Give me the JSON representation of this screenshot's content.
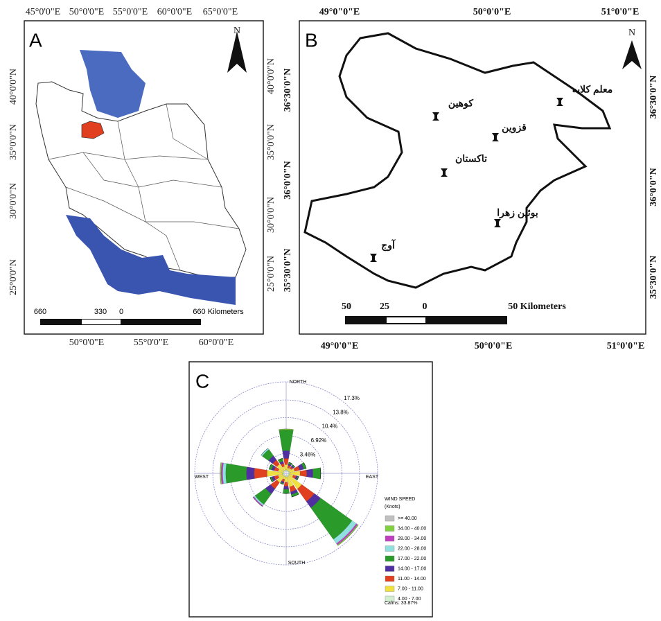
{
  "panel_a": {
    "label": "A",
    "north": "N",
    "top_lon": [
      "45°0'0\"E",
      "50°0'0\"E",
      "55°0'0\"E",
      "60°0'0\"E",
      "65°0'0\"E"
    ],
    "bottom_lon": [
      "50°0'0\"E",
      "55°0'0\"E",
      "60°0'0\"E"
    ],
    "left_lat": [
      "40°0'0\"N",
      "35°0'0\"N",
      "30°0'0\"N",
      "25°0'0\"N"
    ],
    "right_lat": [
      "40°0'0\"N",
      "35°0'0\"N",
      "30°0'0\"N",
      "25°0'0\"N"
    ],
    "scale": [
      "660",
      "330",
      "0",
      "660 Kilometers"
    ]
  },
  "panel_b": {
    "label": "B",
    "north": "N",
    "top_lon": [
      "49°0\"0\"E",
      "50°0'0\"E",
      "51°0'0\"E"
    ],
    "bottom_lon": [
      "49°0'0\"E",
      "50°0'0\"E",
      "51°0'0\"E"
    ],
    "left_lat": [
      "36°30'0\"N",
      "36°0'0\"N",
      "35°30'0\"N"
    ],
    "right_lat": [
      "36°30'0\"N",
      "36°0'0\"N",
      "35°30'0\"N"
    ],
    "cities": [
      "معلم کلایه",
      "کوهین",
      "قزوین",
      "تاکستان",
      "بوئین زهرا",
      "آوج"
    ],
    "scale": [
      "50",
      "25",
      "0",
      "50 Kilometers"
    ]
  },
  "chart_data": {
    "type": "windrose",
    "panel_label": "C",
    "compass": [
      "NORTH",
      "EAST",
      "SOUTH",
      "WEST"
    ],
    "categories": [
      null,
      null,
      null,
      null,
      null,
      null,
      null,
      null,
      null,
      null,
      null,
      null,
      null,
      null,
      null,
      null
    ],
    "rlim": [
      0,
      17.3
    ],
    "rticks": [
      {
        "value": 3.46,
        "label": "3.46%"
      },
      {
        "value": 6.92,
        "label": "6.92%"
      },
      {
        "value": 10.4,
        "label": "10.4%"
      },
      {
        "value": 13.8,
        "label": "13.8%"
      },
      {
        "value": 17.3,
        "label": "17.3%"
      }
    ],
    "legend_title": [
      "WIND SPEED",
      "(Knots)"
    ],
    "calms": "Calms: 33.87%",
    "series": [
      {
        "name": ">= 40.00",
        "color": "#c0c0c0",
        "values": [
          0,
          0,
          0,
          0,
          0,
          0,
          0,
          0,
          0,
          0,
          0,
          0,
          0,
          0,
          0,
          0
        ]
      },
      {
        "name": "34.00 - 40.00",
        "color": "#80d040",
        "values": [
          0.2,
          0,
          0,
          0,
          0,
          0,
          0.2,
          0,
          0,
          0,
          0,
          0,
          0.2,
          0,
          0,
          0
        ]
      },
      {
        "name": "28.00 - 34.00",
        "color": "#c040c0",
        "values": [
          0,
          0,
          0,
          0,
          0,
          0,
          0.3,
          0,
          0,
          0,
          0.2,
          0,
          0.3,
          0,
          0,
          0
        ]
      },
      {
        "name": "22.00 - 28.00",
        "color": "#90e0e0",
        "values": [
          0,
          0,
          0,
          0,
          0,
          0,
          1.0,
          0,
          0,
          0,
          0.3,
          0,
          0.6,
          0,
          0.3,
          0
        ]
      },
      {
        "name": "17.00 - 22.00",
        "color": "#2a9a2a",
        "values": [
          4.0,
          0.3,
          0.2,
          0.5,
          1.5,
          0.2,
          7.5,
          0.5,
          0.8,
          0.2,
          2.5,
          0.3,
          4.0,
          0.5,
          1.5,
          0.6
        ]
      },
      {
        "name": "14.00 - 17.00",
        "color": "#5030a0",
        "values": [
          1.5,
          0.3,
          0.3,
          0.8,
          1.2,
          0.3,
          1.5,
          0.5,
          0.6,
          0.3,
          1.2,
          0.5,
          1.5,
          0.5,
          1.0,
          0.4
        ]
      },
      {
        "name": "11.00 - 14.00",
        "color": "#e04020",
        "values": [
          1.2,
          0.5,
          0.4,
          1.0,
          1.3,
          0.6,
          3.0,
          1.0,
          0.8,
          0.5,
          1.5,
          0.8,
          2.5,
          0.8,
          1.0,
          0.6
        ]
      },
      {
        "name": "7.00 - 11.00",
        "color": "#f0e040",
        "values": [
          1.0,
          0.5,
          0.6,
          1.0,
          2.0,
          0.8,
          3.0,
          2.0,
          1.0,
          0.6,
          1.5,
          1.0,
          3.0,
          1.0,
          1.5,
          0.8
        ]
      },
      {
        "name": "4.00 - 7.00",
        "color": "#d0f0d0",
        "values": [
          0.3,
          0.2,
          0.2,
          0.3,
          0.3,
          0.2,
          0.3,
          0.3,
          0.3,
          0.2,
          0.3,
          0.2,
          0.3,
          0.2,
          0.3,
          0.2
        ]
      }
    ]
  }
}
